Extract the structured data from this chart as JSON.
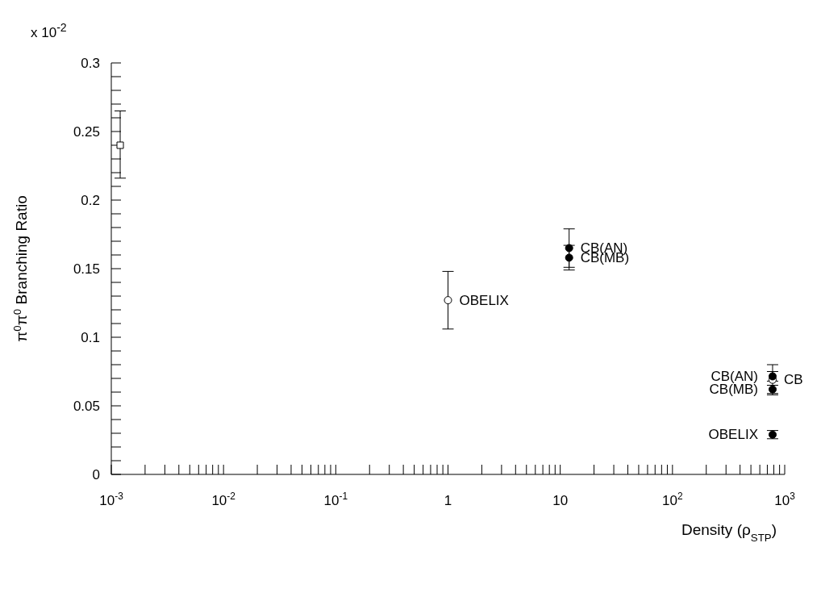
{
  "chart_data": {
    "type": "scatter",
    "xlabel": "Density (ρ$_{STP}$)",
    "ylabel": "π$^{0}$π$^{0}$ Branching Ratio",
    "annotations": [
      "x 10$^{-2}$"
    ],
    "log": "x",
    "xlim": [
      0.001,
      1000
    ],
    "ylim": [
      0,
      0.3
    ],
    "xticks": [
      {
        "value": 0.001,
        "label": "10$^{-3}$"
      },
      {
        "value": 0.002,
        "label": null
      },
      {
        "value": 0.003,
        "label": null
      },
      {
        "value": 0.004,
        "label": null
      },
      {
        "value": 0.005,
        "label": null
      },
      {
        "value": 0.006,
        "label": null
      },
      {
        "value": 0.007,
        "label": null
      },
      {
        "value": 0.008,
        "label": null
      },
      {
        "value": 0.009,
        "label": null
      },
      {
        "value": 0.01,
        "label": "10$^{-2}$"
      },
      {
        "value": 0.02,
        "label": null
      },
      {
        "value": 0.03,
        "label": null
      },
      {
        "value": 0.04,
        "label": null
      },
      {
        "value": 0.05,
        "label": null
      },
      {
        "value": 0.06,
        "label": null
      },
      {
        "value": 0.07,
        "label": null
      },
      {
        "value": 0.08,
        "label": null
      },
      {
        "value": 0.09,
        "label": null
      },
      {
        "value": 0.1,
        "label": "10$^{-1}$"
      },
      {
        "value": 0.2,
        "label": null
      },
      {
        "value": 0.3,
        "label": null
      },
      {
        "value": 0.4,
        "label": null
      },
      {
        "value": 0.5,
        "label": null
      },
      {
        "value": 0.6,
        "label": null
      },
      {
        "value": 0.7,
        "label": null
      },
      {
        "value": 0.8,
        "label": null
      },
      {
        "value": 0.9,
        "label": null
      },
      1,
      {
        "value": 2,
        "label": null
      },
      {
        "value": 3,
        "label": null
      },
      {
        "value": 4,
        "label": null
      },
      {
        "value": 5,
        "label": null
      },
      {
        "value": 6,
        "label": null
      },
      {
        "value": 7,
        "label": null
      },
      {
        "value": 8,
        "label": null
      },
      {
        "value": 9,
        "label": null
      },
      10,
      {
        "value": 20,
        "label": null
      },
      {
        "value": 30,
        "label": null
      },
      {
        "value": 40,
        "label": null
      },
      {
        "value": 50,
        "label": null
      },
      {
        "value": 60,
        "label": null
      },
      {
        "value": 70,
        "label": null
      },
      {
        "value": 80,
        "label": null
      },
      {
        "value": 90,
        "label": null
      },
      {
        "value": 100,
        "label": "10$^{2}$"
      },
      {
        "value": 200,
        "label": null
      },
      {
        "value": 300,
        "label": null
      },
      {
        "value": 400,
        "label": null
      },
      {
        "value": 500,
        "label": null
      },
      {
        "value": 600,
        "label": null
      },
      {
        "value": 700,
        "label": null
      },
      {
        "value": 800,
        "label": null
      },
      {
        "value": 900,
        "label": null
      },
      {
        "value": 1000,
        "label": "10$^{3}$"
      }
    ],
    "yticks": [
      0,
      {
        "value": 0.01,
        "label": null
      },
      {
        "value": 0.02,
        "label": null
      },
      {
        "value": 0.03,
        "label": null
      },
      {
        "value": 0.04,
        "label": null
      },
      0.05,
      {
        "value": 0.06,
        "label": null
      },
      {
        "value": 0.07,
        "label": null
      },
      {
        "value": 0.08,
        "label": null
      },
      {
        "value": 0.09,
        "label": null
      },
      0.1,
      {
        "value": 0.11,
        "label": null
      },
      {
        "value": 0.12,
        "label": null
      },
      {
        "value": 0.13,
        "label": null
      },
      {
        "value": 0.14,
        "label": null
      },
      0.15,
      {
        "value": 0.16,
        "label": null
      },
      {
        "value": 0.17,
        "label": null
      },
      {
        "value": 0.18,
        "label": null
      },
      {
        "value": 0.19,
        "label": null
      },
      0.2,
      {
        "value": 0.21,
        "label": null
      },
      {
        "value": 0.22,
        "label": null
      },
      {
        "value": 0.23,
        "label": null
      },
      {
        "value": 0.24,
        "label": null
      },
      0.25,
      {
        "value": 0.26,
        "label": null
      },
      {
        "value": 0.27,
        "label": null
      },
      {
        "value": 0.28,
        "label": null
      },
      {
        "value": 0.29,
        "label": null
      },
      0.3
    ],
    "series": [
      {
        "color": "#ffffff",
        "marker": "square",
        "x": [
          0.0012
        ],
        "values": [
          0.24
        ],
        "errors": [
          [
            0.216,
            0.265
          ]
        ]
      },
      {
        "name": "OBELIX",
        "color": "#ffffff",
        "marker": "circle",
        "x": [
          1
        ],
        "values": [
          0.127
        ],
        "errors": [
          [
            0.106,
            0.148
          ]
        ]
      },
      {
        "name": "CB",
        "color": "#ffffff",
        "marker": "circle",
        "x": [
          780
        ],
        "values": [
          0.069
        ],
        "errors": [
          [
            0.058,
            0.08
          ]
        ]
      },
      {
        "name": "CB(AN)",
        "color": "#000000",
        "marker": "circle",
        "x": [
          12,
          780
        ],
        "values": [
          0.165,
          0.0715
        ],
        "errors": [
          [
            0.151,
            0.179
          ],
          [
            0.068,
            0.075
          ]
        ]
      },
      {
        "name": "CB(MB)",
        "color": "#000000",
        "marker": "circle",
        "x": [
          12,
          780
        ],
        "values": [
          0.158,
          0.062
        ],
        "errors": [
          [
            0.149,
            0.167
          ],
          [
            0.059,
            0.065
          ]
        ]
      },
      {
        "name": "OBELIX",
        "color": "#000000",
        "marker": "circle",
        "x": [
          780
        ],
        "values": [
          0.029
        ],
        "errors": [
          [
            0.026,
            0.032
          ]
        ]
      }
    ]
  }
}
